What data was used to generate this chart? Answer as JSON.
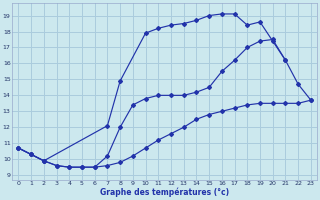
{
  "bg_color": "#cce8ee",
  "grid_color": "#aaccdd",
  "line_color": "#2233aa",
  "xlabel": "Graphe des températures (°c)",
  "x_ticks": [
    0,
    1,
    2,
    3,
    4,
    5,
    6,
    7,
    8,
    9,
    10,
    11,
    12,
    13,
    14,
    15,
    16,
    17,
    18,
    19,
    20,
    21,
    22,
    23
  ],
  "y_ticks": [
    9,
    10,
    11,
    12,
    13,
    14,
    15,
    16,
    17,
    18,
    19
  ],
  "ylim": [
    8.7,
    19.8
  ],
  "xlim": [
    -0.5,
    23.5
  ],
  "curve_high_x": [
    0,
    1,
    2,
    7,
    8,
    10,
    11,
    12,
    13,
    14,
    15,
    16,
    17,
    18,
    19,
    20,
    21,
    22,
    23
  ],
  "curve_high_y": [
    10.7,
    10.3,
    9.9,
    12.1,
    14.9,
    17.9,
    18.2,
    18.4,
    18.5,
    18.7,
    19.0,
    19.1,
    19.1,
    18.4,
    18.6,
    17.4,
    16.2,
    14.7,
    13.7
  ],
  "curve_mid_x": [
    0,
    1,
    2,
    3,
    4,
    5,
    6,
    7,
    8,
    9,
    10,
    11,
    12,
    13,
    14,
    15,
    16,
    17,
    18,
    19,
    20,
    21
  ],
  "curve_mid_y": [
    10.7,
    10.3,
    9.9,
    9.6,
    9.5,
    9.5,
    9.5,
    10.2,
    12.0,
    13.4,
    13.8,
    14.0,
    14.0,
    14.0,
    14.2,
    14.5,
    15.5,
    16.2,
    17.0,
    17.4,
    17.5,
    16.2
  ],
  "curve_low_x": [
    0,
    1,
    2,
    3,
    4,
    5,
    6,
    7,
    8,
    9,
    10,
    11,
    12,
    13,
    14,
    15,
    16,
    17,
    18,
    19,
    20,
    21,
    22,
    23
  ],
  "curve_low_y": [
    10.7,
    10.3,
    9.9,
    9.6,
    9.5,
    9.5,
    9.5,
    9.6,
    9.8,
    10.2,
    10.7,
    11.2,
    11.6,
    12.0,
    12.5,
    12.8,
    13.0,
    13.2,
    13.4,
    13.5,
    13.5,
    13.5,
    13.5,
    13.7
  ]
}
